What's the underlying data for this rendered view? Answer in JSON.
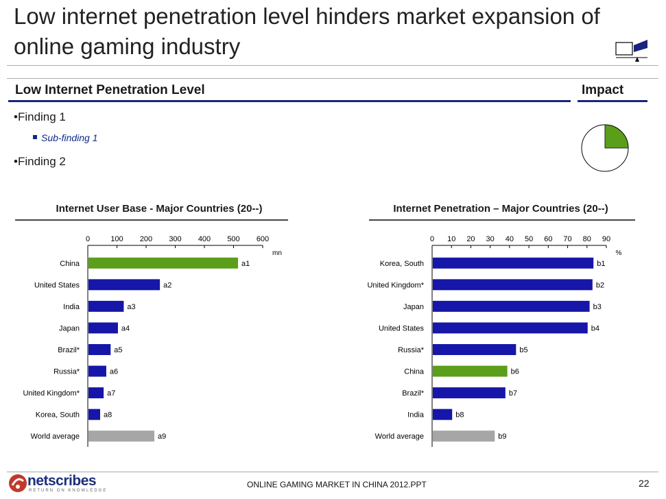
{
  "slide": {
    "title": "Low internet penetration level hinders market expansion of online gaming industry",
    "section_left": "Low Internet Penetration Level",
    "section_right": "Impact",
    "findings": {
      "f1": "Finding 1",
      "sub1": "Sub-finding 1",
      "f2": "Finding 2"
    },
    "impact_pie_fraction": 0.25,
    "colors": {
      "blue": "#1616a8",
      "green": "#5a9e1a",
      "grey": "#a6a6a6",
      "navy": "#1a237e"
    }
  },
  "footer": {
    "logo": "netscribes",
    "tagline": "RETURN ON KNOWLEDGE",
    "text": "ONLINE GAMING MARKET IN CHINA 2012.PPT",
    "page": "22"
  },
  "chart_data": [
    {
      "type": "bar",
      "orientation": "horizontal",
      "title": "Internet User Base - Major Countries (20--)",
      "unit_label": "mn",
      "xlim": [
        0,
        600
      ],
      "ticks": [
        "0",
        "100",
        "200",
        "300",
        "400",
        "500",
        "600"
      ],
      "categories": [
        "China",
        "United States",
        "India",
        "Japan",
        "Brazil*",
        "Russia*",
        "United Kingdom*",
        "Korea, South",
        "World average"
      ],
      "values": [
        513,
        245,
        121,
        101,
        76,
        61,
        52,
        40,
        226
      ],
      "labels": [
        "a1",
        "a2",
        "a3",
        "a4",
        "a5",
        "a6",
        "a7",
        "a8",
        "a9"
      ],
      "highlight": [
        "green",
        "blue",
        "blue",
        "blue",
        "blue",
        "blue",
        "blue",
        "blue",
        "grey"
      ]
    },
    {
      "type": "bar",
      "orientation": "horizontal",
      "title": "Internet Penetration – Major Countries (20--)",
      "unit_label": "%",
      "xlim": [
        0,
        90
      ],
      "ticks": [
        "0",
        "10",
        "20",
        "30",
        "40",
        "50",
        "60",
        "70",
        "80",
        "90"
      ],
      "categories": [
        "Korea, South",
        "United Kingdom*",
        "Japan",
        "United States",
        "Russia*",
        "China",
        "Brazil*",
        "India",
        "World average"
      ],
      "values": [
        83,
        82.5,
        81,
        80,
        43,
        38.5,
        37.5,
        10,
        32
      ],
      "labels": [
        "b1",
        "b2",
        "b3",
        "b4",
        "b5",
        "b6",
        "b7",
        "b8",
        "b9"
      ],
      "highlight": [
        "blue",
        "blue",
        "blue",
        "blue",
        "blue",
        "green",
        "blue",
        "blue",
        "grey"
      ]
    }
  ]
}
